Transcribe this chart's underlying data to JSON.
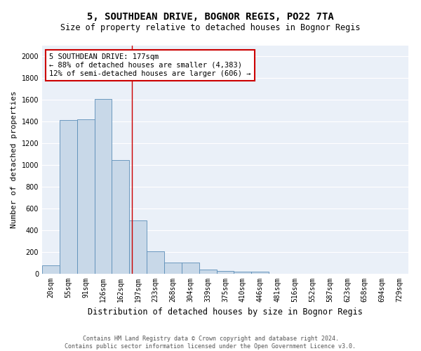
{
  "title": "5, SOUTHDEAN DRIVE, BOGNOR REGIS, PO22 7TA",
  "subtitle": "Size of property relative to detached houses in Bognor Regis",
  "xlabel": "Distribution of detached houses by size in Bognor Regis",
  "ylabel": "Number of detached properties",
  "bar_color": "#c8d8e8",
  "bar_edge_color": "#5b8db8",
  "background_color": "#eaf0f8",
  "grid_color": "#ffffff",
  "categories": [
    "20sqm",
    "55sqm",
    "91sqm",
    "126sqm",
    "162sqm",
    "197sqm",
    "233sqm",
    "268sqm",
    "304sqm",
    "339sqm",
    "375sqm",
    "410sqm",
    "446sqm",
    "481sqm",
    "516sqm",
    "552sqm",
    "587sqm",
    "623sqm",
    "658sqm",
    "694sqm",
    "729sqm"
  ],
  "values": [
    80,
    1415,
    1420,
    1610,
    1050,
    490,
    205,
    105,
    105,
    40,
    25,
    20,
    20,
    0,
    0,
    0,
    0,
    0,
    0,
    0,
    0
  ],
  "annotation_text": "5 SOUTHDEAN DRIVE: 177sqm\n← 88% of detached houses are smaller (4,383)\n12% of semi-detached houses are larger (606) →",
  "vline_x": 4.65,
  "vline_color": "#cc0000",
  "ylim": [
    0,
    2100
  ],
  "yticks": [
    0,
    200,
    400,
    600,
    800,
    1000,
    1200,
    1400,
    1600,
    1800,
    2000
  ],
  "footer_text": "Contains HM Land Registry data © Crown copyright and database right 2024.\nContains public sector information licensed under the Open Government Licence v3.0.",
  "title_fontsize": 10,
  "subtitle_fontsize": 8.5,
  "annotation_fontsize": 7.5,
  "tick_fontsize": 7,
  "ylabel_fontsize": 8,
  "xlabel_fontsize": 8.5,
  "footer_fontsize": 6
}
